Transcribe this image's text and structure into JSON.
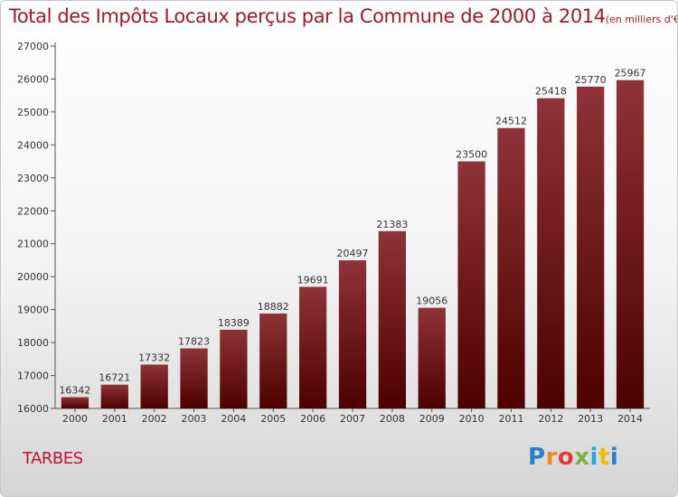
{
  "title": "Total des Impôts Locaux perçus par la Commune de 2000 à 2014",
  "unit": "(en milliers d'€)",
  "commune": "TARBES",
  "logo": {
    "letters": [
      "P",
      "r",
      "o",
      "x",
      "i",
      "t",
      "i"
    ],
    "colors": [
      "#2a7fc9",
      "#f08a1c",
      "#e53935",
      "#7cb342",
      "#29a3d8",
      "#f5b800",
      "#2a7fc9"
    ]
  },
  "colors": {
    "bar_light": "#8e3339",
    "bar_dark": "#4d0000",
    "title": "#9a1a2a",
    "commune": "#c8102e"
  },
  "chart_data": {
    "type": "bar",
    "title": "Total des Impôts Locaux perçus par la Commune de 2000 à 2014",
    "xlabel": "",
    "ylabel": "",
    "categories": [
      "2000",
      "2001",
      "2002",
      "2003",
      "2004",
      "2005",
      "2006",
      "2007",
      "2008",
      "2009",
      "2010",
      "2011",
      "2012",
      "2013",
      "2014"
    ],
    "values": [
      16342,
      16721,
      17332,
      17823,
      18389,
      18882,
      19691,
      20497,
      21383,
      19056,
      23500,
      24512,
      25418,
      25770,
      25967
    ],
    "ylim": [
      16000,
      27000
    ],
    "yticks": [
      16000,
      17000,
      18000,
      19000,
      20000,
      21000,
      22000,
      23000,
      24000,
      25000,
      26000,
      27000
    ],
    "grid": false
  }
}
